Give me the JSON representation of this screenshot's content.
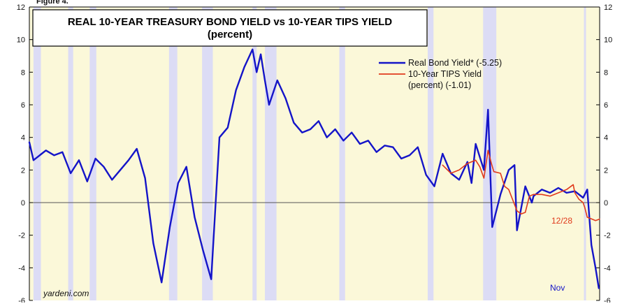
{
  "figure_label": "Figure 4.",
  "source": "yardeni.com",
  "colors": {
    "real_bond": "#1414c8",
    "tips": "#e03a1c",
    "recession": "#dcdcf5",
    "plot_bg": "#fbf8d9",
    "zero_line": "#555555"
  },
  "chart_data": {
    "type": "line",
    "title": "REAL 10-YEAR TREASURY BOND YIELD vs 10-YEAR TIPS YIELD",
    "subtitle": "(percent)",
    "xlabel": "",
    "ylabel": "",
    "xlim": [
      1953,
      2022
    ],
    "ylim": [
      -6,
      12
    ],
    "y_ticks": [
      -6,
      -4,
      -2,
      0,
      2,
      4,
      6,
      8,
      10,
      12
    ],
    "y_tick_labels": [
      "-6",
      "-4",
      "-2",
      "0",
      "2",
      "4",
      "6",
      "8",
      "10",
      "12"
    ],
    "grid": false,
    "legend_position": "top-right",
    "recessions": [
      [
        1953.5,
        1954.4
      ],
      [
        1957.7,
        1958.3
      ],
      [
        1960.3,
        1961.1
      ],
      [
        1969.9,
        1970.9
      ],
      [
        1973.9,
        1975.2
      ],
      [
        1980.0,
        1980.5
      ],
      [
        1981.5,
        1982.9
      ],
      [
        1990.5,
        1991.2
      ],
      [
        2001.2,
        2001.9
      ],
      [
        2007.9,
        2009.5
      ],
      [
        2020.1,
        2020.35
      ]
    ],
    "series": [
      {
        "name": "Real Bond Yield*",
        "legend_label": "Real Bond Yield* (-5.25)",
        "end_label": "Nov",
        "x": [
          1953,
          1953.5,
          1954,
          1954.5,
          1955,
          1956,
          1957,
          1958,
          1959,
          1960,
          1961,
          1962,
          1963,
          1964,
          1965,
          1966,
          1967,
          1968,
          1969,
          1970,
          1971,
          1972,
          1973,
          1974,
          1975,
          1976,
          1977,
          1978,
          1979,
          1980,
          1980.5,
          1981,
          1981.5,
          1982,
          1983,
          1984,
          1985,
          1986,
          1987,
          1988,
          1989,
          1990,
          1991,
          1992,
          1993,
          1994,
          1995,
          1996,
          1997,
          1998,
          1999,
          2000,
          2001,
          2002,
          2003,
          2004,
          2005,
          2006,
          2006.5,
          2007,
          2008,
          2008.5,
          2009,
          2010,
          2011,
          2011.7,
          2012,
          2013,
          2013.8,
          2014,
          2015,
          2016,
          2017,
          2018,
          2019,
          2020,
          2020.5,
          2021,
          2021.5,
          2021.9
        ],
        "values": [
          3.7,
          2.6,
          2.8,
          3.0,
          3.2,
          2.9,
          3.1,
          1.8,
          2.6,
          1.3,
          2.7,
          2.2,
          1.4,
          2.0,
          2.6,
          3.3,
          1.5,
          -2.5,
          -4.9,
          -1.5,
          1.2,
          2.2,
          -0.9,
          -2.9,
          -4.7,
          4.0,
          4.6,
          6.9,
          8.3,
          9.4,
          8.0,
          9.1,
          7.5,
          6.0,
          7.5,
          6.4,
          4.9,
          4.3,
          4.5,
          5.0,
          4.0,
          4.5,
          3.8,
          4.3,
          3.6,
          3.8,
          3.1,
          3.5,
          3.4,
          2.7,
          2.9,
          3.4,
          1.7,
          1.0,
          3.0,
          1.8,
          1.4,
          2.5,
          1.2,
          3.6,
          2.0,
          5.7,
          -1.5,
          0.5,
          2.0,
          2.3,
          -1.7,
          1.0,
          0.0,
          0.4,
          0.8,
          0.6,
          0.9,
          0.6,
          0.7,
          0.3,
          0.8,
          -2.6,
          -4.0,
          -5.25
        ]
      },
      {
        "name": "10-Year TIPS Yield (percent)",
        "legend_label_line1": "10-Year TIPS Yield",
        "legend_label_line2": "(percent) (-1.01)",
        "end_label": "12/28",
        "x": [
          2003,
          2004,
          2005,
          2006,
          2007,
          2007.5,
          2008,
          2008.5,
          2008.9,
          2009.2,
          2010,
          2010.5,
          2011,
          2012,
          2012.5,
          2013,
          2013.5,
          2014,
          2015,
          2016,
          2017,
          2018,
          2018.8,
          2019,
          2019.5,
          2020,
          2020.2,
          2020.5,
          2021,
          2021.5,
          2021.99
        ],
        "values": [
          2.3,
          1.8,
          2.0,
          2.4,
          2.6,
          2.2,
          1.5,
          3.2,
          2.4,
          1.9,
          1.8,
          1.0,
          0.8,
          -0.5,
          -0.7,
          -0.6,
          0.4,
          0.5,
          0.5,
          0.4,
          0.6,
          0.8,
          1.1,
          0.6,
          0.2,
          0.0,
          -0.3,
          -0.9,
          -1.0,
          -1.1,
          -1.01
        ]
      }
    ]
  }
}
